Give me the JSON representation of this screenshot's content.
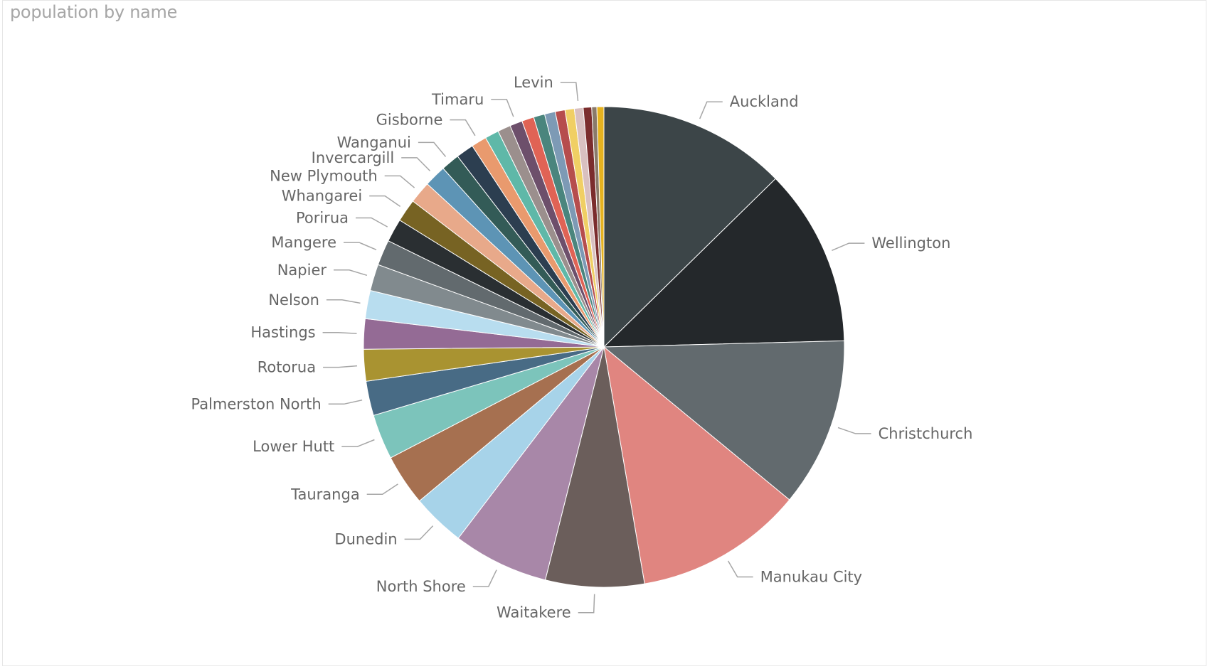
{
  "chart_data": {
    "type": "pie",
    "title": "population by name",
    "slices": [
      {
        "name": "Auckland",
        "value": 404658,
        "color": "#3c4548"
      },
      {
        "name": "Wellington",
        "value": 381900,
        "color": "#24282b"
      },
      {
        "name": "Christchurch",
        "value": 363926,
        "color": "#626a6e"
      },
      {
        "name": "Manukau City",
        "value": 362000,
        "color": "#e08580"
      },
      {
        "name": "Waitakere",
        "value": 212000,
        "color": "#6b5e5b"
      },
      {
        "name": "North Shore",
        "value": 205605,
        "color": "#a887a8"
      },
      {
        "name": "Dunedin",
        "value": 114347,
        "color": "#a7d3e9"
      },
      {
        "name": "Tauranga",
        "value": 110000,
        "color": "#a67050"
      },
      {
        "name": "Lower Hutt",
        "value": 97000,
        "color": "#7cc4bb"
      },
      {
        "name": "Palmerston North",
        "value": 74000,
        "color": "#486b85"
      },
      {
        "name": "Rotorua",
        "value": 68200,
        "color": "#a99331"
      },
      {
        "name": "Hastings",
        "value": 65000,
        "color": "#946b95"
      },
      {
        "name": "Nelson",
        "value": 60800,
        "color": "#b8ddef"
      },
      {
        "name": "Napier",
        "value": 57000,
        "color": "#818a8e"
      },
      {
        "name": "Mangere",
        "value": 55000,
        "color": "#626a6e"
      },
      {
        "name": "Porirua",
        "value": 50000,
        "color": "#2a2f32"
      },
      {
        "name": "Whangarei",
        "value": 49000,
        "color": "#776323"
      },
      {
        "name": "New Plymouth",
        "value": 47600,
        "color": "#e8a98a"
      },
      {
        "name": "Invercargill",
        "value": 47000,
        "color": "#5d94b5"
      },
      {
        "name": "Wanganui",
        "value": 40000,
        "color": "#335b57"
      },
      {
        "name": "",
        "value": 38000,
        "color": "#2c3e50"
      },
      {
        "name": "Gisborne",
        "value": 33000,
        "color": "#e99a6e"
      },
      {
        "name": "",
        "value": 30000,
        "color": "#5fb8a8"
      },
      {
        "name": "",
        "value": 28000,
        "color": "#9b8f8d"
      },
      {
        "name": "Timaru",
        "value": 27000,
        "color": "#6d4f6b"
      },
      {
        "name": "",
        "value": 26000,
        "color": "#e06355"
      },
      {
        "name": "",
        "value": 24000,
        "color": "#4a857d"
      },
      {
        "name": "",
        "value": 23000,
        "color": "#7d9ab5"
      },
      {
        "name": "",
        "value": 21000,
        "color": "#b64d4d"
      },
      {
        "name": "",
        "value": 20000,
        "color": "#f0cf64"
      },
      {
        "name": "Levin",
        "value": 19000,
        "color": "#d9c0c0"
      },
      {
        "name": "",
        "value": 18000,
        "color": "#7b2d2d"
      },
      {
        "name": "",
        "value": 11000,
        "color": "#8a7a6a"
      },
      {
        "name": "",
        "value": 15000,
        "color": "#e5b21f"
      }
    ]
  }
}
